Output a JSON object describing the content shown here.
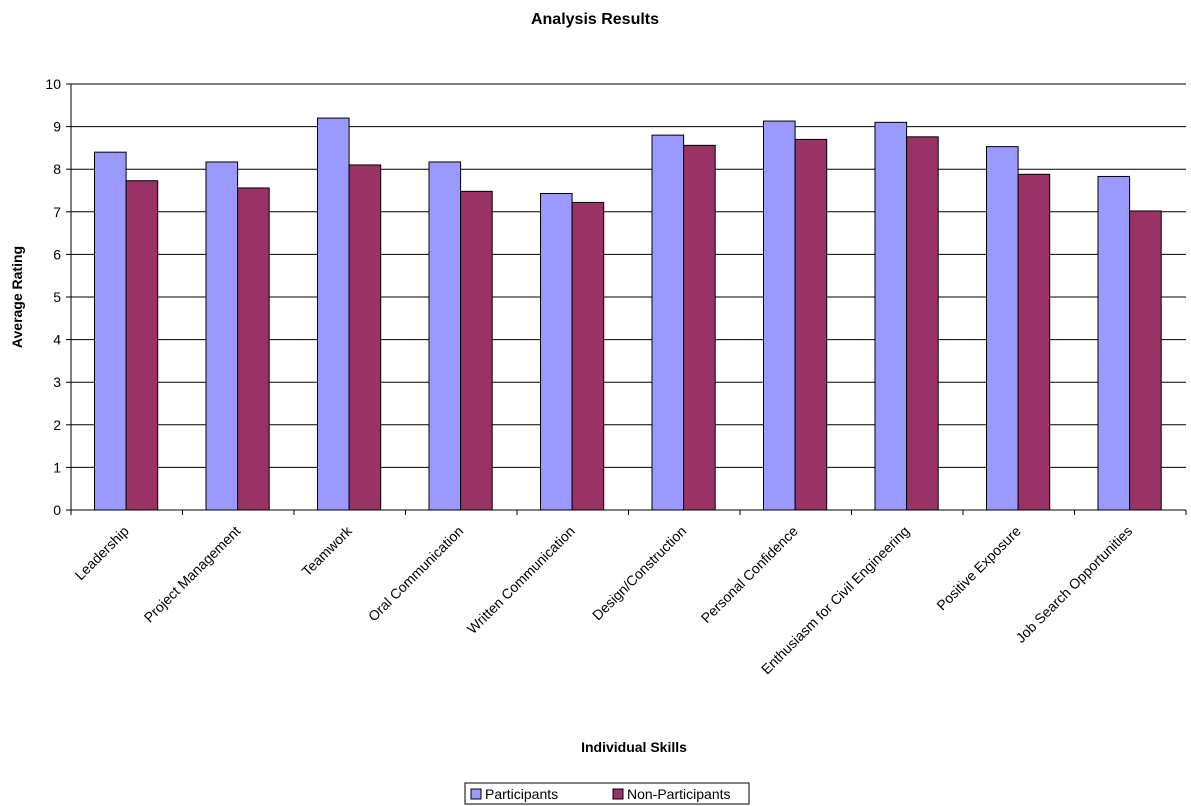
{
  "chart_data": {
    "type": "bar",
    "title": "Analysis Results",
    "xlabel": "Individual Skills",
    "ylabel": "Average Rating",
    "ylim": [
      0,
      10
    ],
    "yticks": [
      "0",
      "1",
      "2",
      "3",
      "4",
      "5",
      "6",
      "7",
      "8",
      "9",
      "10"
    ],
    "grid": true,
    "legend_position": "bottom",
    "categories": [
      "Leadership",
      "Project Management",
      "Teamwork",
      "Oral Communication",
      "Written Communication",
      "Design/Construction",
      "Personal Confidence",
      "Enthusiasm for Civil Engineering",
      "Positive Exposure",
      "Job Search Opportunities"
    ],
    "series": [
      {
        "name": "Participants",
        "color": "#9999ff",
        "values": [
          8.4,
          8.17,
          9.2,
          8.17,
          7.43,
          8.8,
          9.13,
          9.1,
          8.53,
          7.83
        ]
      },
      {
        "name": "Non-Participants",
        "color": "#993366",
        "values": [
          7.73,
          7.56,
          8.1,
          7.48,
          7.22,
          8.56,
          8.7,
          8.76,
          7.88,
          7.02
        ]
      }
    ]
  }
}
